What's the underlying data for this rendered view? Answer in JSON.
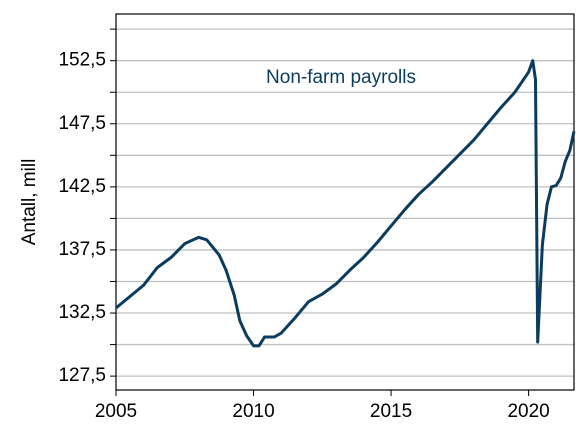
{
  "chart_data": {
    "type": "line",
    "annotation": "Non-farm payrolls",
    "y_label": "Antall, mill",
    "xlim": [
      2005,
      2021.65
    ],
    "xticks": [
      2005,
      2010,
      2015,
      2020
    ],
    "ylim": [
      126.4,
      156.2
    ],
    "yticks": [
      {
        "value": 127.5,
        "label": "127,5"
      },
      {
        "value": 132.5,
        "label": "132,5"
      },
      {
        "value": 137.5,
        "label": "137,5"
      },
      {
        "value": 142.5,
        "label": "142,5"
      },
      {
        "value": 147.5,
        "label": "147,5"
      },
      {
        "value": 152.5,
        "label": "152,5"
      }
    ],
    "yminor": [
      130,
      135,
      140,
      145,
      150,
      155
    ],
    "grid": true,
    "series": [
      {
        "color": "#0b3c5d",
        "x": [
          2005.0,
          2005.5,
          2006.0,
          2006.5,
          2007.0,
          2007.5,
          2008.0,
          2008.3,
          2008.75,
          2009.0,
          2009.3,
          2009.5,
          2009.75,
          2010.0,
          2010.2,
          2010.4,
          2010.75,
          2011.0,
          2011.5,
          2012.0,
          2012.5,
          2013.0,
          2013.5,
          2014.0,
          2014.5,
          2015.0,
          2015.5,
          2016.0,
          2016.5,
          2017.0,
          2017.5,
          2018.0,
          2018.5,
          2019.0,
          2019.5,
          2020.0,
          2020.15,
          2020.25,
          2020.33,
          2020.5,
          2020.67,
          2020.83,
          2021.0,
          2021.17,
          2021.33,
          2021.5,
          2021.65
        ],
        "values": [
          132.9,
          133.8,
          134.7,
          136.1,
          136.9,
          138.0,
          138.5,
          138.3,
          137.1,
          135.9,
          133.9,
          131.9,
          130.7,
          129.9,
          129.9,
          130.6,
          130.6,
          130.9,
          132.1,
          133.4,
          134.0,
          134.8,
          135.9,
          136.9,
          138.1,
          139.4,
          140.7,
          141.9,
          142.9,
          144.0,
          145.1,
          146.2,
          147.5,
          148.8,
          150.0,
          151.6,
          152.5,
          151.0,
          130.2,
          137.9,
          141.1,
          142.5,
          142.6,
          143.2,
          144.5,
          145.4,
          146.9
        ]
      }
    ]
  }
}
